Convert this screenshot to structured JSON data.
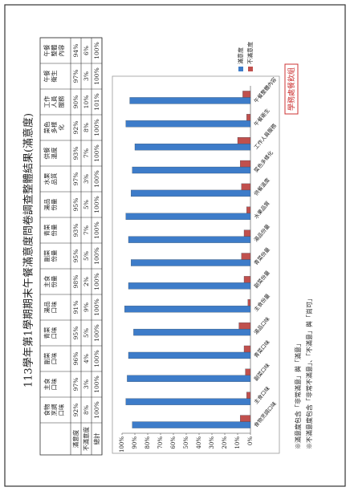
{
  "title": "113學年第1學期期末午餐滿意度問卷調查整體結果(滿意度)",
  "table": {
    "header": [
      "食物烹調口味",
      "主食口味",
      "副菜口味",
      "青菜口味",
      "湯品口味",
      "主食份量",
      "副菜份量",
      "青菜份量",
      "湯品份量",
      "水果品質",
      "供餐溫度",
      "菜色多樣化",
      "工作人員服務",
      "午餐衛生",
      "午餐整體內容"
    ],
    "rows": [
      {
        "label": "滿意度",
        "cells": [
          "92%",
          "97%",
          "96%",
          "95%",
          "91%",
          "98%",
          "95%",
          "93%",
          "95%",
          "97%",
          "93%",
          "92%",
          "90%",
          "97%",
          "94%"
        ]
      },
      {
        "label": "不滿意度",
        "cells": [
          "8%",
          "3%",
          "4%",
          "5%",
          "9%",
          "2%",
          "5%",
          "7%",
          "5%",
          "3%",
          "7%",
          "8%",
          "10%",
          "3%",
          "6%"
        ]
      },
      {
        "label": "總計",
        "cells": [
          "100%",
          "100%",
          "100%",
          "100%",
          "100%",
          "100%",
          "100%",
          "100%",
          "100%",
          "100%",
          "100%",
          "100%",
          "101%",
          "100%",
          "100%"
        ]
      }
    ]
  },
  "chart_data": {
    "type": "bar",
    "categories": [
      "食物烹調口味",
      "主食口味",
      "副菜口味",
      "青菜口味",
      "湯品口味",
      "主食份量",
      "副菜份量",
      "青菜份量",
      "湯品份量",
      "水果品質",
      "供餐溫度",
      "菜色多樣化",
      "工作人員服務",
      "午餐衛生",
      "午餐整體內容"
    ],
    "series": [
      {
        "name": "滿意度",
        "color": "#3d7cc9",
        "values": [
          92,
          97,
          96,
          95,
          91,
          98,
          95,
          93,
          95,
          97,
          93,
          92,
          90,
          97,
          94
        ]
      },
      {
        "name": "不滿意度",
        "color": "#c0504d",
        "values": [
          8,
          3,
          4,
          5,
          9,
          2,
          5,
          7,
          5,
          3,
          7,
          8,
          10,
          3,
          6
        ]
      }
    ],
    "ylim": [
      0,
      100
    ],
    "yticks": [
      {
        "value": 0,
        "label": "0%"
      },
      {
        "value": 10,
        "label": "10%"
      },
      {
        "value": 20,
        "label": "20%"
      },
      {
        "value": 30,
        "label": "30%"
      },
      {
        "value": 40,
        "label": "40%"
      },
      {
        "value": 50,
        "label": "50%"
      },
      {
        "value": 60,
        "label": "60%"
      },
      {
        "value": 70,
        "label": "70%"
      },
      {
        "value": 80,
        "label": "80%"
      },
      {
        "value": 90,
        "label": "90%"
      },
      {
        "value": 100,
        "label": "100%"
      }
    ]
  },
  "stamp": "學務處餐飲組",
  "notes": [
    "※滿意度包含「非常滿意」與「滿意」",
    "※不滿意度包含「非常不滿意」、「不滿意」與「尚可」"
  ]
}
